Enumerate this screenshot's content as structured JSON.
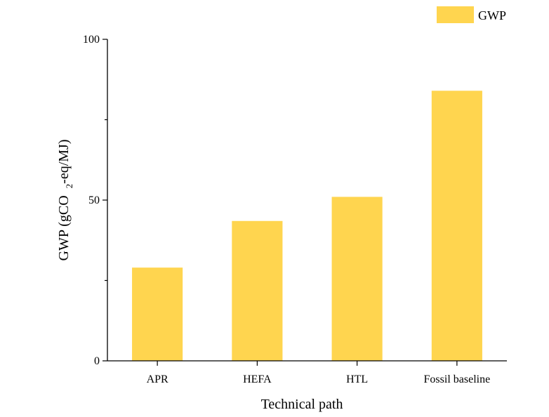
{
  "chart_data": {
    "type": "bar",
    "categories": [
      "APR",
      "HEFA",
      "HTL",
      "Fossil baseline"
    ],
    "series": [
      {
        "name": "GWP",
        "values": [
          29,
          43.5,
          51,
          84
        ]
      }
    ],
    "xlabel": "Technical path",
    "ylabel_main": "GWP (gCO",
    "ylabel_sub": "2",
    "ylabel_tail": "-eq/MJ)",
    "ylim": [
      0,
      100
    ],
    "yticks": [
      0,
      50,
      100
    ],
    "yticks_minor": [
      25,
      75
    ],
    "grid": false,
    "legend_position": "top-right",
    "bar_color": "#FFD54F"
  }
}
